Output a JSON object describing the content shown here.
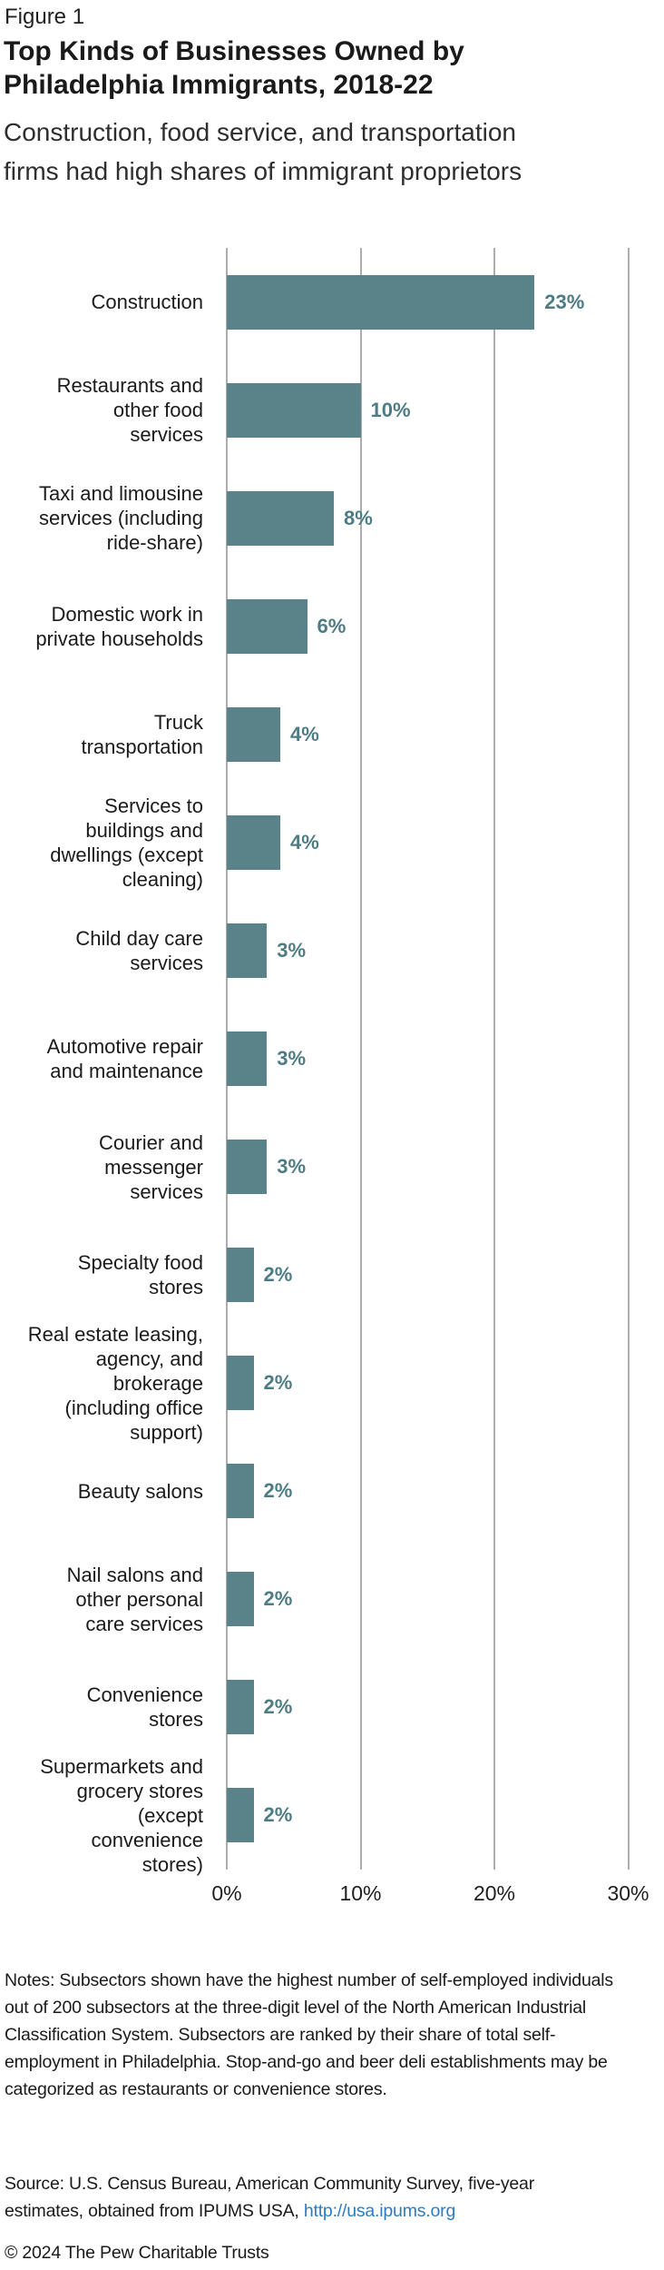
{
  "figure_label": "Figure 1",
  "title": "Top Kinds of Businesses Owned by\nPhiladelphia Immigrants, 2018-22",
  "subtitle": "Construction, food service, and transportation\nfirms had high shares of immigrant proprietors",
  "chart_data": {
    "type": "bar",
    "orientation": "horizontal",
    "categories": [
      "Construction",
      "Restaurants and\nother food\nservices",
      "Taxi and limousine\nservices (including\nride-share)",
      "Domestic work in\nprivate households",
      "Truck\ntransportation",
      "Services to\nbuildings and\ndwellings (except\ncleaning)",
      "Child day care\nservices",
      "Automotive repair\nand maintenance",
      "Courier and\nmessenger\nservices",
      "Specialty food\nstores",
      "Real estate leasing,\nagency, and\nbrokerage\n(including office\nsupport)",
      "Beauty salons",
      "Nail salons and\nother personal\ncare services",
      "Convenience\nstores",
      "Supermarkets and\ngrocery stores\n(except\nconvenience\nstores)"
    ],
    "values": [
      23,
      10,
      8,
      6,
      4,
      4,
      3,
      3,
      3,
      2,
      2,
      2,
      2,
      2,
      2
    ],
    "value_labels": [
      "23%",
      "10%",
      "8%",
      "6%",
      "4%",
      "4%",
      "3%",
      "3%",
      "3%",
      "2%",
      "2%",
      "2%",
      "2%",
      "2%",
      "2%"
    ],
    "x_ticks": [
      "0%",
      "10%",
      "20%",
      "30%"
    ],
    "x_tick_values": [
      0,
      10,
      20,
      30
    ],
    "xlim": [
      0,
      30
    ],
    "grid": "vertical",
    "legend": "none",
    "bar_color": "#5A8389",
    "value_label_color": "#4D7C85",
    "gridline_color": "#ADADAD"
  },
  "notes": "Notes: Subsectors shown have the highest number of self-employed individuals out of 200 subsectors at the three-digit level of the North American Industrial Classification System. Subsectors are ranked by their share of total self-employment in Philadelphia. Stop-and-go and beer deli establishments may be categorized as restaurants or convenience stores.",
  "source": {
    "prefix": "Source: U.S. Census Bureau, American Community Survey, five-year estimates, obtained from IPUMS USA, ",
    "link": "http://usa.ipums.org",
    "link_color": "#2B7CC4"
  },
  "copyright": "© 2024 The Pew Charitable Trusts"
}
